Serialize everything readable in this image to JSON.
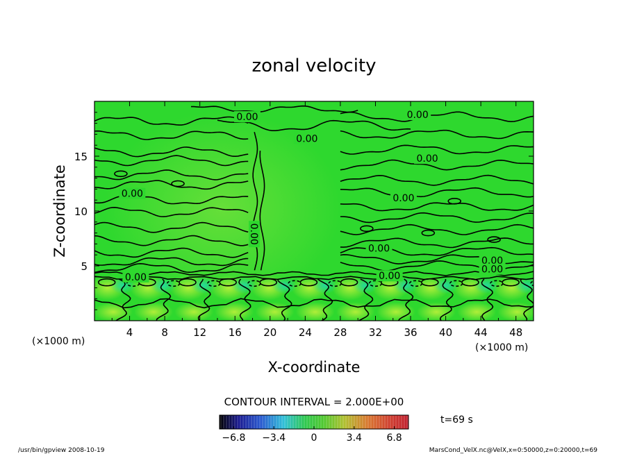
{
  "chart_data": {
    "type": "heatmap",
    "title": "zonal velocity",
    "xlabel": "X-coordinate",
    "ylabel": "Z-coordinate",
    "x_unit": "(×1000 m)",
    "y_unit": "(×1000 m)",
    "xlim": [
      0,
      50
    ],
    "ylim": [
      0,
      20
    ],
    "x_ticks": [
      "4",
      "8",
      "12",
      "16",
      "20",
      "24",
      "28",
      "32",
      "36",
      "40",
      "44",
      "48"
    ],
    "y_ticks": [
      "5",
      "10",
      "15"
    ],
    "contour_interval_text": "CONTOUR INTERVAL = 2.000E+00",
    "contour_labels": [
      {
        "text": "0.00",
        "x": 17.4,
        "z": 18.6
      },
      {
        "text": "0.00",
        "x": 36.8,
        "z": 18.8
      },
      {
        "text": "0.00",
        "x": 24.2,
        "z": 16.6
      },
      {
        "text": "0.00",
        "x": 37.9,
        "z": 14.8
      },
      {
        "text": "0.00",
        "x": 4.3,
        "z": 11.6
      },
      {
        "text": "0.00",
        "x": 35.2,
        "z": 11.2
      },
      {
        "text": "0.00",
        "x": 18.2,
        "z": 7.9,
        "rotate": 90
      },
      {
        "text": "0.00",
        "x": 32.4,
        "z": 6.6
      },
      {
        "text": "0.00",
        "x": 45.3,
        "z": 5.5
      },
      {
        "text": "0.00",
        "x": 45.3,
        "z": 4.7
      },
      {
        "text": "0.00",
        "x": 4.7,
        "z": 4.0
      },
      {
        "text": "0.00",
        "x": 33.6,
        "z": 4.1
      }
    ],
    "colorbar": {
      "min": -8,
      "max": 8,
      "tick_labels": [
        "−6.8",
        "−3.4",
        "0",
        "3.4",
        "6.8"
      ],
      "tick_values": [
        -6.8,
        -3.4,
        0,
        3.4,
        6.8
      ]
    },
    "time_label": "t=69 s",
    "colors": {
      "background_field": "#2ed82e",
      "negative": "#2a3ac8",
      "positive": "#e84a2a"
    }
  },
  "footer": {
    "left": "/usr/bin/gpview   2008-10-19",
    "right": "MarsCond_VelX.nc@VelX,x=0:50000,z=0:20000,t=69"
  }
}
